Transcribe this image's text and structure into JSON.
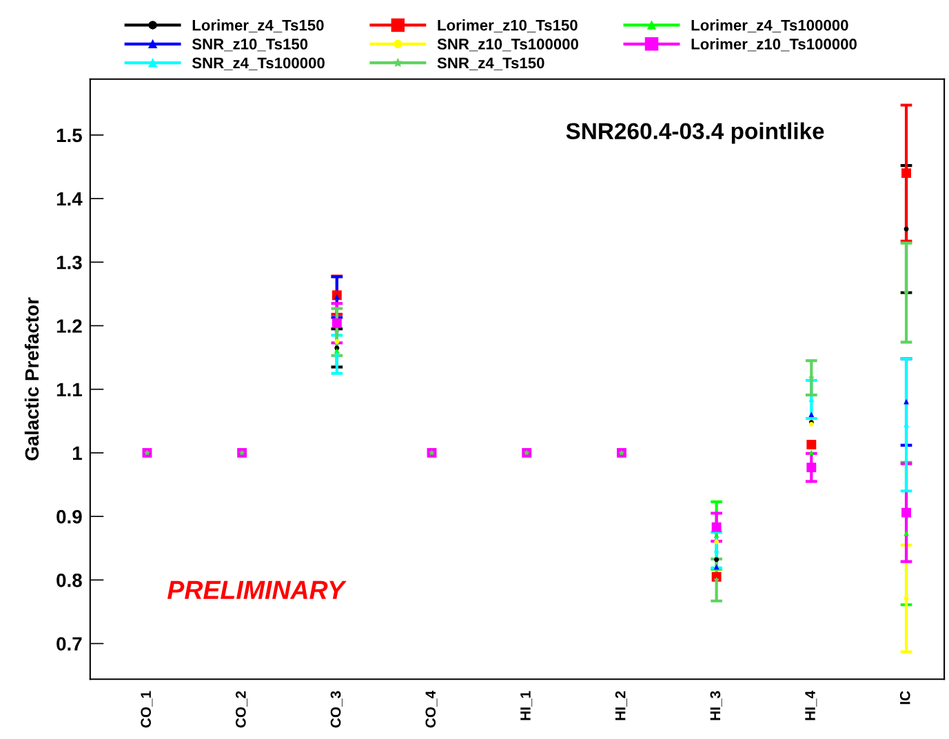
{
  "chart_data": {
    "type": "scatter",
    "title": "SNR260.4-03.4 pointlike",
    "ylabel": "Galactic Prefactor",
    "categories": [
      "CO_1",
      "CO_2",
      "CO_3",
      "CO_4",
      "HI_1",
      "HI_2",
      "HI_3",
      "HI_4",
      "IC"
    ],
    "ylim": [
      0.644,
      1.588
    ],
    "yticks": [
      0.7,
      0.8,
      0.9,
      1,
      1.1,
      1.2,
      1.3,
      1.4,
      1.5
    ],
    "grid": false,
    "legend": "top",
    "annotations": [
      "PRELIMINARY"
    ],
    "series": [
      {
        "name": "Lorimer_z4_Ts150",
        "color": "#000000",
        "marker": "circle",
        "values": [
          null,
          null,
          1.165,
          null,
          null,
          null,
          0.832,
          1.048,
          1.352
        ],
        "errors": [
          null,
          null,
          0.03,
          null,
          null,
          null,
          null,
          null,
          0.1
        ]
      },
      {
        "name": "Lorimer_z10_Ts150",
        "color": "#ff0000",
        "marker": "square",
        "values": [
          null,
          null,
          1.248,
          null,
          null,
          null,
          0.805,
          1.013,
          1.44
        ],
        "errors": [
          null,
          null,
          0.03,
          null,
          null,
          null,
          null,
          null,
          0.107
        ]
      },
      {
        "name": "Lorimer_z4_Ts100000",
        "color": "#00ff00",
        "marker": "triangle",
        "values": [
          null,
          null,
          1.16,
          null,
          null,
          null,
          0.87,
          1.0,
          0.873
        ],
        "errors": [
          null,
          null,
          null,
          null,
          null,
          null,
          0.053,
          null,
          0.112
        ]
      },
      {
        "name": "SNR_z10_Ts150",
        "color": "#0000ff",
        "marker": "triangle",
        "values": [
          null,
          null,
          1.245,
          null,
          null,
          null,
          0.82,
          1.06,
          1.08
        ],
        "errors": [
          null,
          null,
          0.032,
          null,
          null,
          null,
          null,
          null,
          0.068
        ]
      },
      {
        "name": "SNR_z10_Ts100000",
        "color": "#ffff00",
        "marker": "circle",
        "values": [
          null,
          null,
          1.175,
          null,
          null,
          null,
          0.86,
          1.045,
          0.771
        ],
        "errors": [
          null,
          null,
          null,
          null,
          null,
          null,
          null,
          null,
          0.084
        ]
      },
      {
        "name": "Lorimer_z10_Ts100000",
        "color": "#ff00ff",
        "marker": "square",
        "values": [
          1,
          1,
          1.204,
          1,
          1,
          1,
          0.883,
          0.977,
          0.906
        ],
        "errors": [
          null,
          null,
          0.031,
          null,
          null,
          null,
          0.022,
          0.022,
          0.077
        ]
      },
      {
        "name": "SNR_z4_Ts100000",
        "color": "#00ffff",
        "marker": "triangle",
        "values": [
          null,
          null,
          1.155,
          null,
          null,
          null,
          0.847,
          1.084,
          1.044
        ],
        "errors": [
          null,
          null,
          0.03,
          null,
          null,
          null,
          0.028,
          0.03,
          0.104
        ]
      },
      {
        "name": "SNR_z4_Ts150",
        "color": "#5fd35f",
        "marker": "star",
        "values": [
          1,
          1,
          1.19,
          1,
          1,
          1,
          0.8,
          1.118,
          1.252
        ],
        "errors": [
          null,
          null,
          0.037,
          null,
          null,
          null,
          0.033,
          0.027,
          0.078
        ]
      }
    ]
  }
}
